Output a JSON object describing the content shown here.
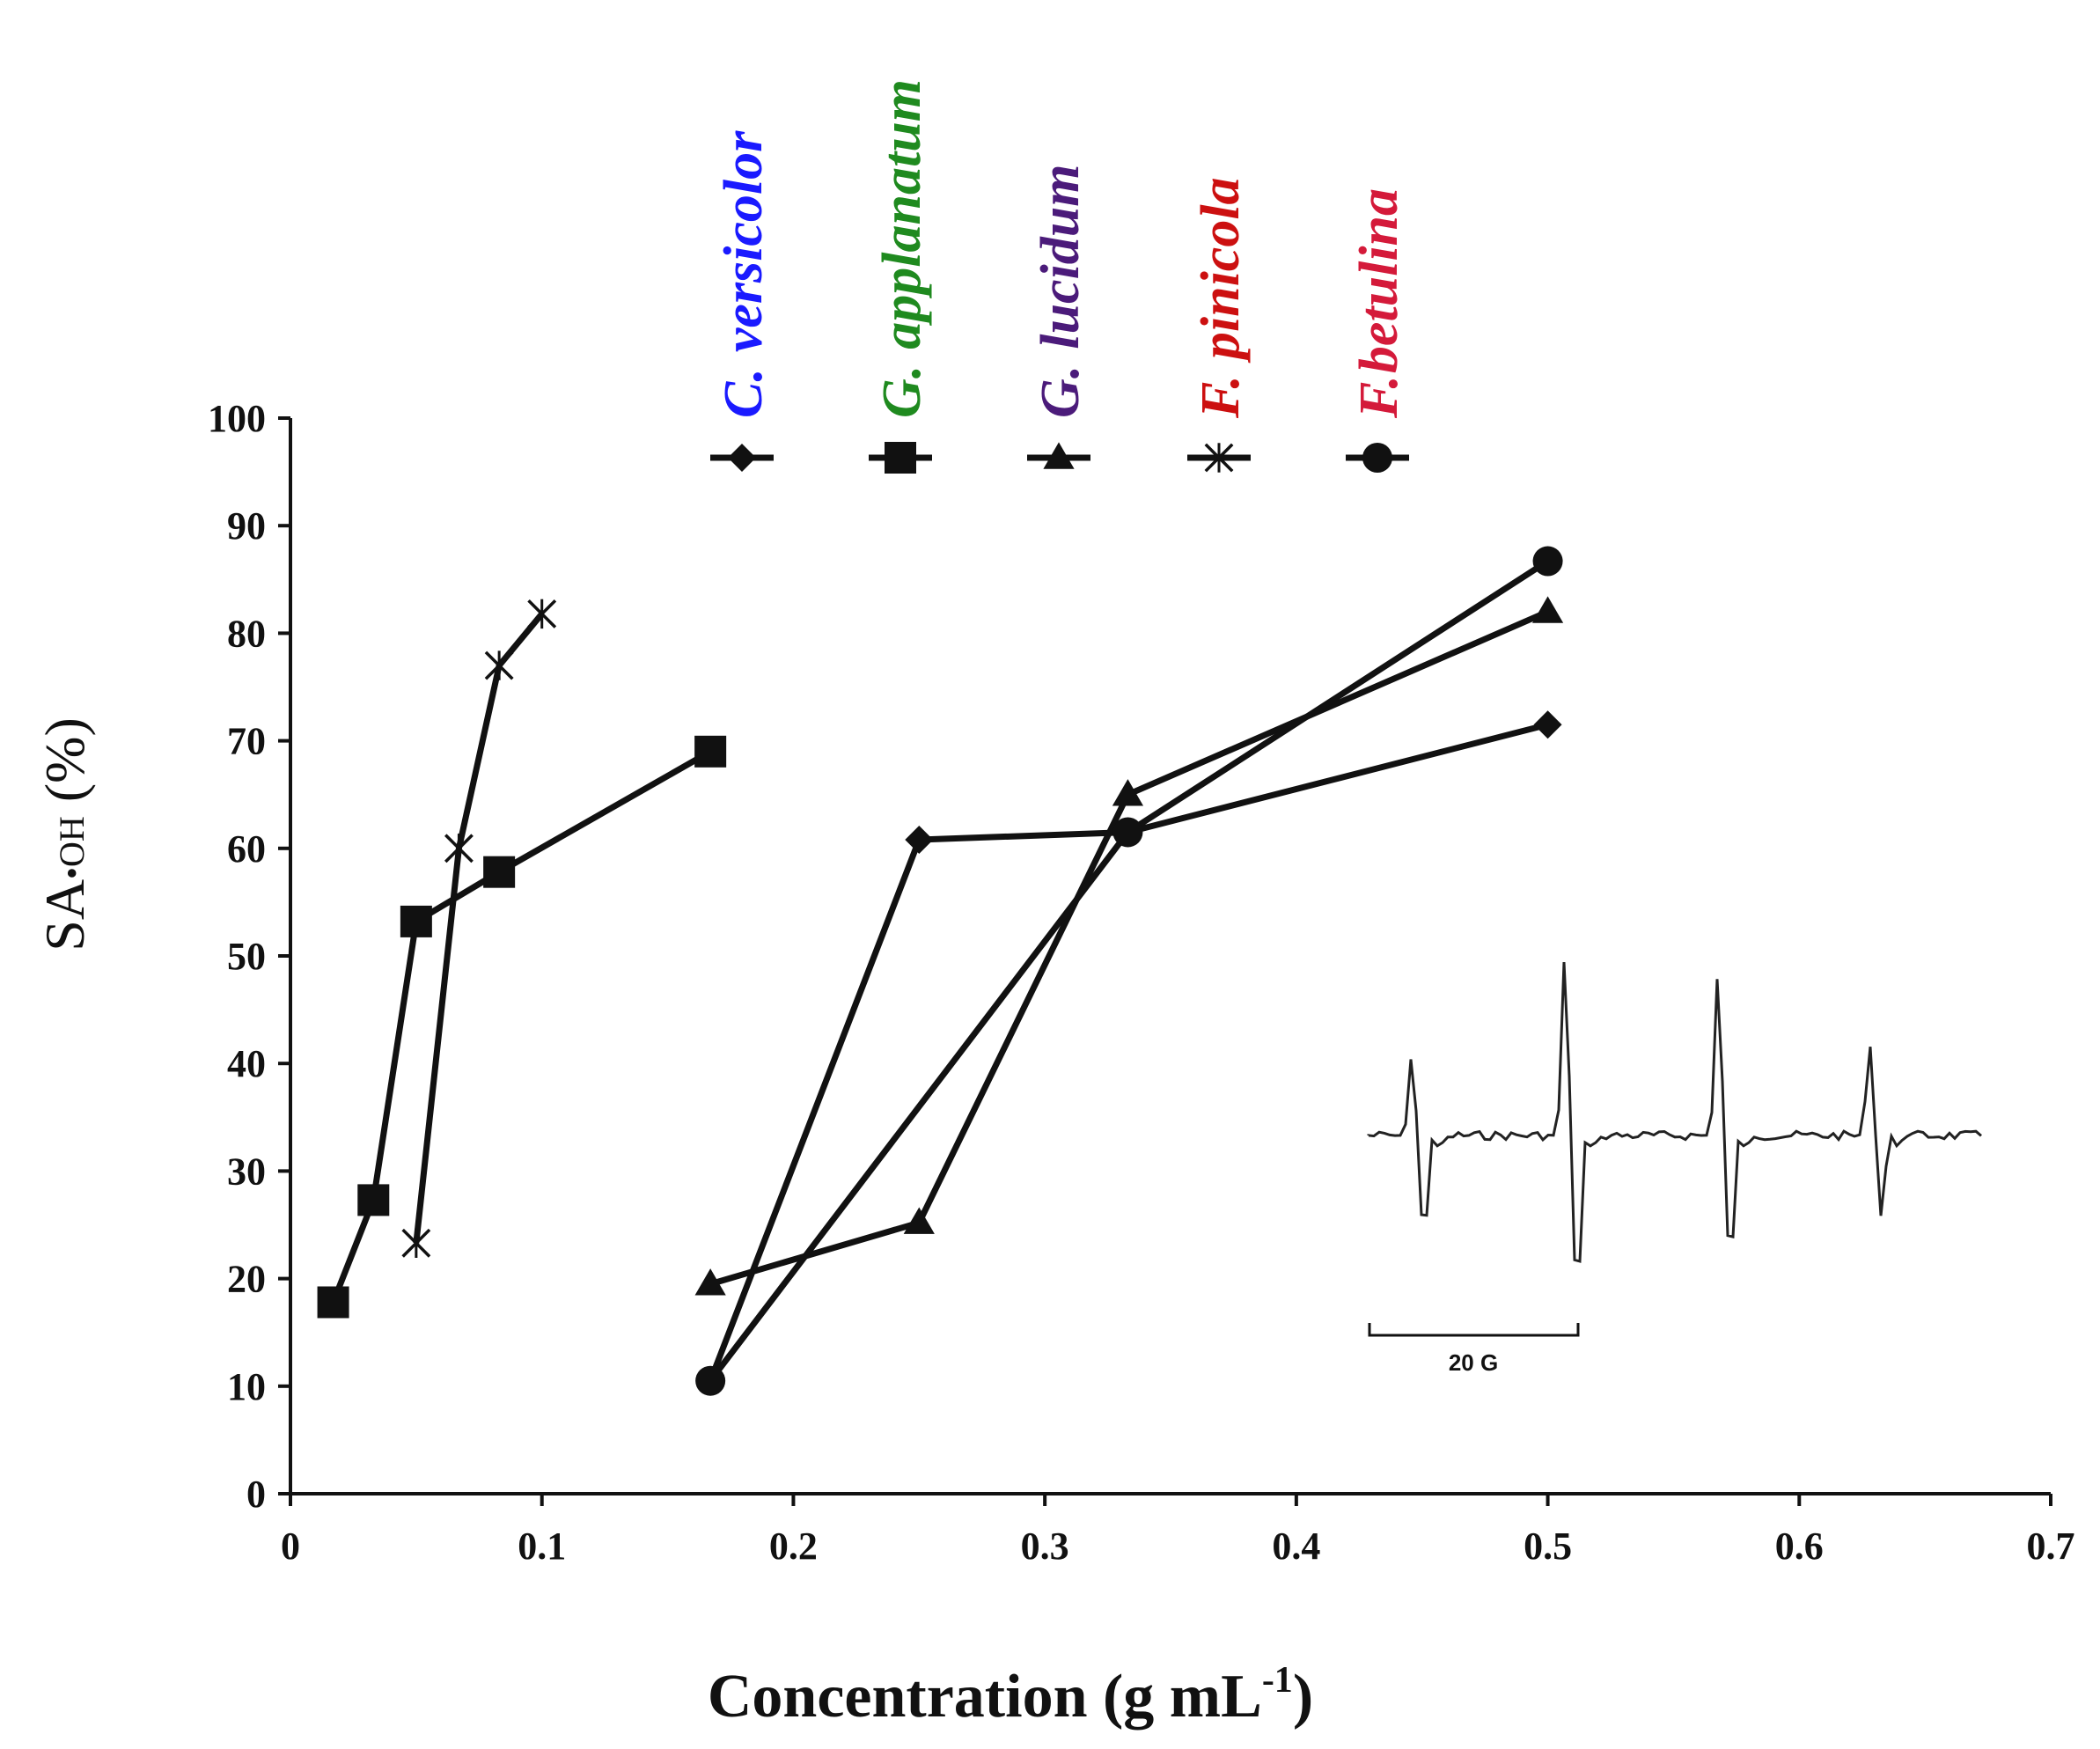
{
  "chart_data": {
    "type": "line",
    "xlabel": "Concentration (g mL",
    "xlabel_sup": "-1",
    "xlabel_tail": ")",
    "ylabel_main": "SA",
    "ylabel_sub": "•OH",
    "ylabel_tail": " (%)",
    "xlim": [
      0,
      0.7
    ],
    "ylim": [
      0,
      100
    ],
    "x_ticks": [
      {
        "value": 0,
        "label": "0"
      },
      {
        "value": 0.1,
        "label": "0.1"
      },
      {
        "value": 0.2,
        "label": "0.2"
      },
      {
        "value": 0.3,
        "label": "0.3"
      },
      {
        "value": 0.4,
        "label": "0.4"
      },
      {
        "value": 0.5,
        "label": "0.5"
      },
      {
        "value": 0.6,
        "label": "0.6"
      },
      {
        "value": 0.7,
        "label": "0.7"
      }
    ],
    "y_ticks": [
      {
        "value": 0,
        "label": "0"
      },
      {
        "value": 10,
        "label": "10"
      },
      {
        "value": 20,
        "label": "20"
      },
      {
        "value": 30,
        "label": "30"
      },
      {
        "value": 40,
        "label": "40"
      },
      {
        "value": 50,
        "label": "50"
      },
      {
        "value": 60,
        "label": "60"
      },
      {
        "value": 70,
        "label": "70"
      },
      {
        "value": 80,
        "label": "80"
      },
      {
        "value": 90,
        "label": "90"
      },
      {
        "value": 100,
        "label": "100"
      }
    ],
    "grid": false,
    "legend_position": "top",
    "series": [
      {
        "name": "C. versicolor",
        "genus": "C.",
        "species": "versicolor",
        "marker": "diamond",
        "color": "#1a1aff",
        "points": [
          [
            0.167,
            10.5
          ],
          [
            0.25,
            60.8
          ],
          [
            0.333,
            61.5
          ],
          [
            0.5,
            71.5
          ]
        ]
      },
      {
        "name": "G. applanatum",
        "genus": "G.",
        "species": "applanatum",
        "marker": "square",
        "color": "#1f8a1f",
        "points": [
          [
            0.017,
            17.8
          ],
          [
            0.033,
            27.3
          ],
          [
            0.05,
            53.2
          ],
          [
            0.083,
            57.8
          ],
          [
            0.167,
            69.0
          ]
        ]
      },
      {
        "name": "G. lucidum",
        "genus": "G.",
        "species": "lucidum",
        "marker": "triangle",
        "color": "#4b1b7a",
        "points": [
          [
            0.167,
            19.5
          ],
          [
            0.25,
            25.2
          ],
          [
            0.333,
            65.0
          ],
          [
            0.5,
            82.0
          ]
        ]
      },
      {
        "name": "F. pinicola",
        "genus": "F.",
        "species": "pinicola",
        "marker": "star",
        "color": "#cc1010",
        "points": [
          [
            0.05,
            23.3
          ],
          [
            0.067,
            60.0
          ],
          [
            0.083,
            77.0
          ],
          [
            0.1,
            81.8
          ]
        ]
      },
      {
        "name": "F.betulina",
        "genus": "F.",
        "species": "betulina",
        "marker": "circle",
        "color": "#d41a3a",
        "points": [
          [
            0.167,
            10.5
          ],
          [
            0.333,
            61.5
          ],
          [
            0.5,
            86.7
          ]
        ]
      }
    ],
    "inset": {
      "type": "epr-spectrum",
      "scale_label": "20 G"
    }
  }
}
